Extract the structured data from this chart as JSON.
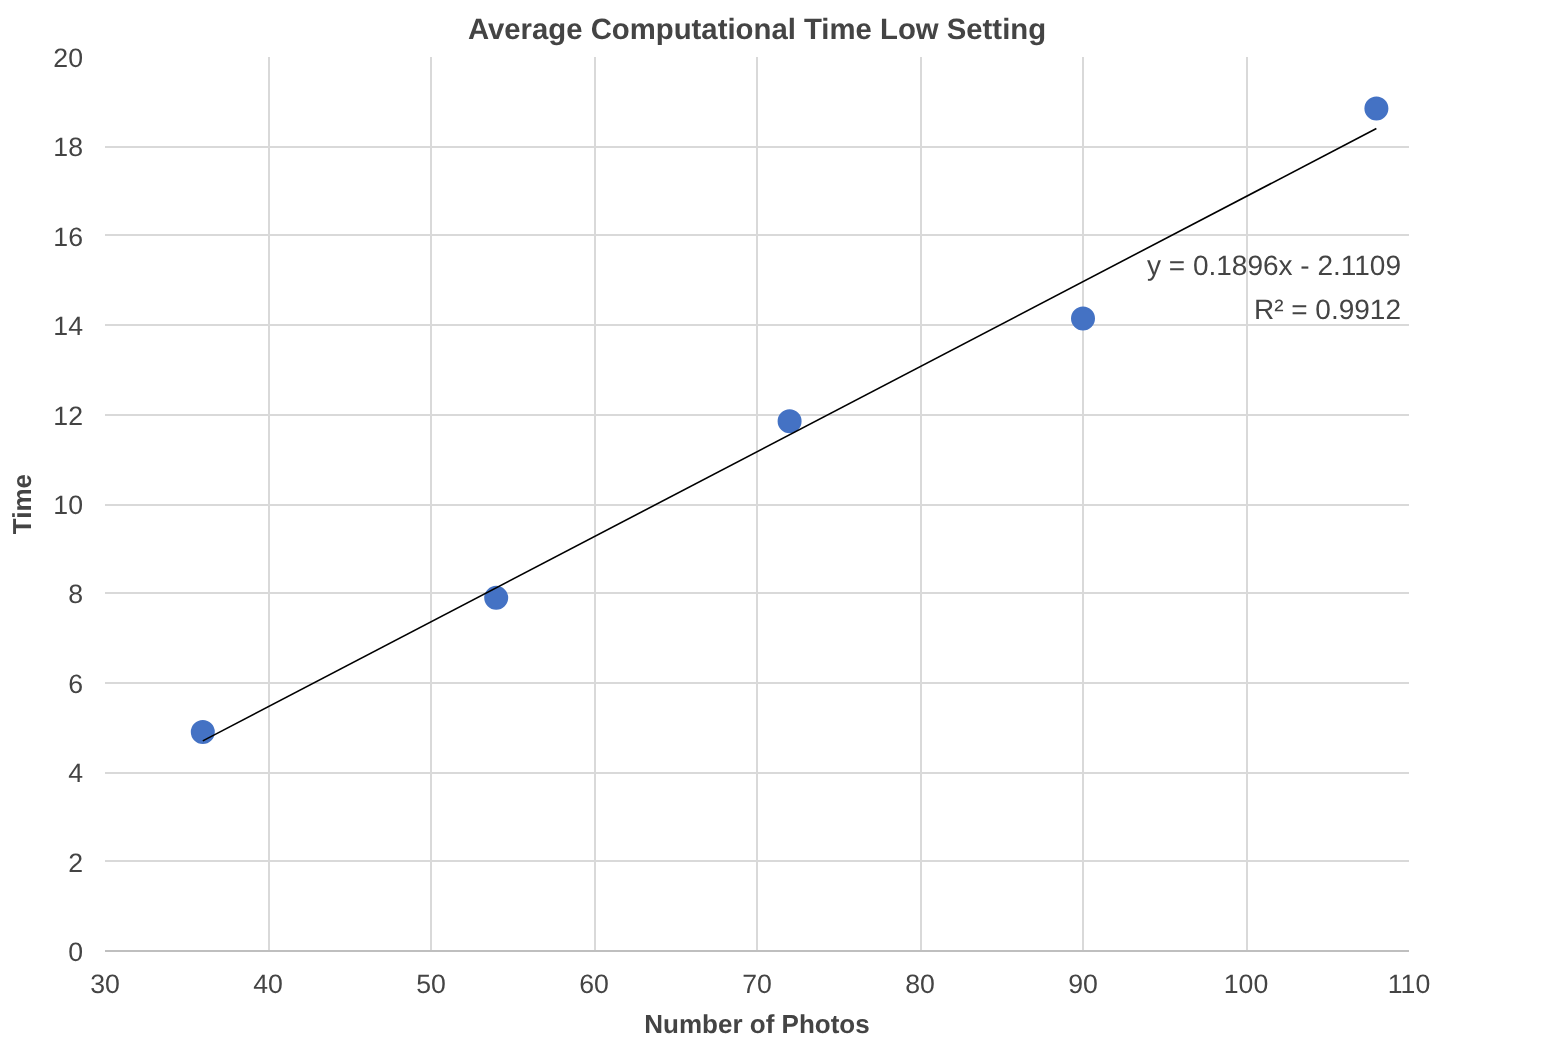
{
  "chart_data": {
    "type": "scatter",
    "title": "Average Computational Time Low Setting",
    "xlabel": "Number of Photos",
    "ylabel": "Time",
    "xlim": [
      30,
      110
    ],
    "xticks": [
      30,
      40,
      50,
      60,
      70,
      80,
      90,
      100,
      110
    ],
    "ylim": [
      0,
      20
    ],
    "yticks": [
      0,
      2,
      4,
      6,
      8,
      10,
      12,
      14,
      16,
      18,
      20
    ],
    "grid": true,
    "series": [
      {
        "marker": "circle",
        "color": "#4472c4",
        "x": [
          36,
          54,
          72,
          90,
          108
        ],
        "values": [
          4.9,
          7.9,
          11.85,
          14.15,
          18.85
        ]
      },
      {
        "type": "line",
        "color": "#000000",
        "x": [
          36,
          108
        ],
        "values": [
          4.7,
          18.4
        ]
      }
    ],
    "annotations": [
      "y = 0.1896x - 2.1109",
      "R² = 0.9912"
    ]
  }
}
